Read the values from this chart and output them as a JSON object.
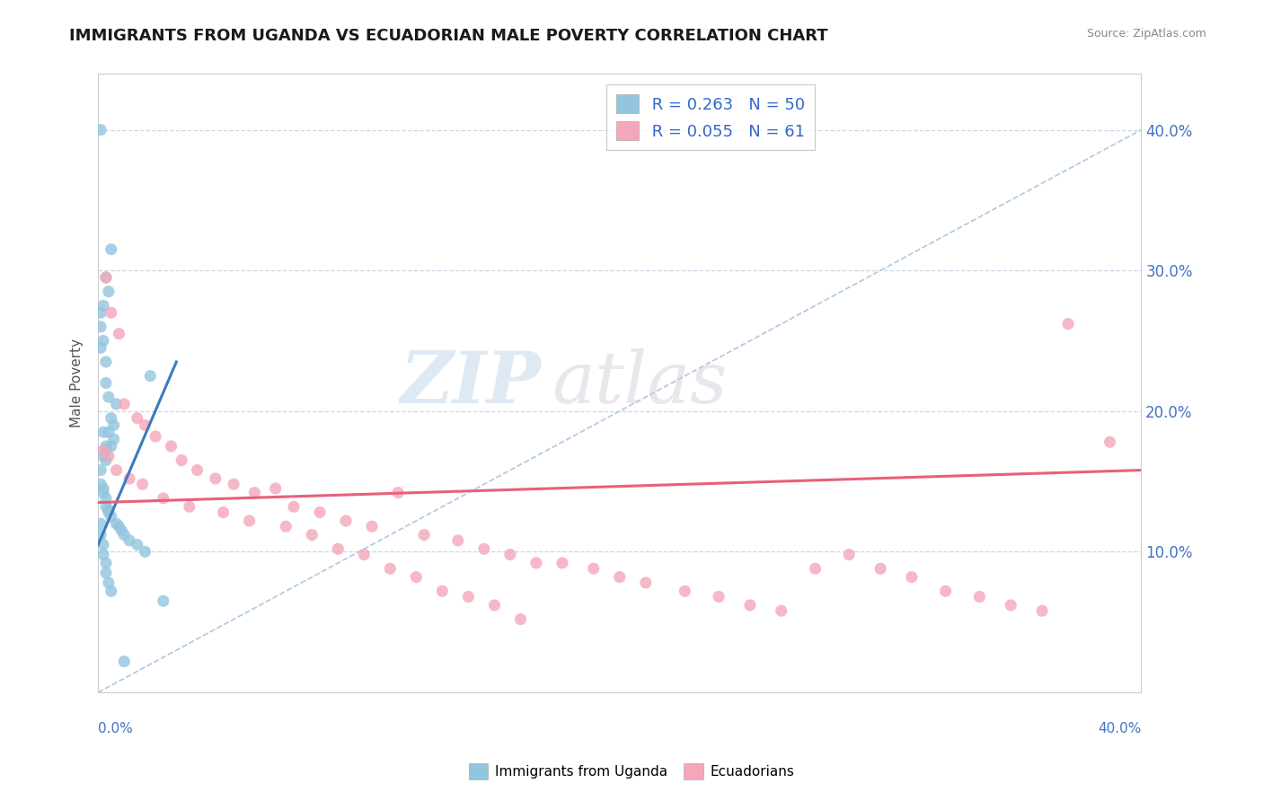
{
  "title": "IMMIGRANTS FROM UGANDA VS ECUADORIAN MALE POVERTY CORRELATION CHART",
  "source": "Source: ZipAtlas.com",
  "ylabel": "Male Poverty",
  "yaxis_ticks": [
    0.0,
    0.1,
    0.2,
    0.3,
    0.4
  ],
  "xaxis_range": [
    0.0,
    0.4
  ],
  "yaxis_range": [
    0.0,
    0.44
  ],
  "legend_blue_r": "0.263",
  "legend_blue_n": "50",
  "legend_pink_r": "0.055",
  "legend_pink_n": "61",
  "legend_blue_label": "Immigrants from Uganda",
  "legend_pink_label": "Ecuadorians",
  "watermark_zip": "ZIP",
  "watermark_atlas": "atlas",
  "blue_color": "#92c5de",
  "pink_color": "#f4a7b9",
  "blue_line_color": "#3a7bbf",
  "pink_line_color": "#e8607a",
  "blue_dots_x": [
    0.001,
    0.005,
    0.001,
    0.002,
    0.003,
    0.004,
    0.002,
    0.001,
    0.001,
    0.003,
    0.003,
    0.004,
    0.005,
    0.006,
    0.007,
    0.006,
    0.005,
    0.004,
    0.003,
    0.003,
    0.002,
    0.003,
    0.002,
    0.001,
    0.001,
    0.002,
    0.002,
    0.003,
    0.003,
    0.004,
    0.004,
    0.005,
    0.007,
    0.008,
    0.009,
    0.01,
    0.012,
    0.015,
    0.018,
    0.02,
    0.001,
    0.001,
    0.002,
    0.002,
    0.003,
    0.003,
    0.004,
    0.005,
    0.025,
    0.01
  ],
  "blue_dots_y": [
    0.4,
    0.315,
    0.27,
    0.25,
    0.295,
    0.285,
    0.275,
    0.26,
    0.245,
    0.235,
    0.22,
    0.21,
    0.195,
    0.19,
    0.205,
    0.18,
    0.175,
    0.185,
    0.172,
    0.165,
    0.185,
    0.175,
    0.168,
    0.158,
    0.148,
    0.145,
    0.142,
    0.138,
    0.132,
    0.13,
    0.128,
    0.125,
    0.12,
    0.118,
    0.115,
    0.112,
    0.108,
    0.105,
    0.1,
    0.225,
    0.12,
    0.112,
    0.105,
    0.098,
    0.092,
    0.085,
    0.078,
    0.072,
    0.065,
    0.022
  ],
  "pink_dots_x": [
    0.003,
    0.005,
    0.008,
    0.01,
    0.015,
    0.018,
    0.022,
    0.028,
    0.032,
    0.038,
    0.045,
    0.052,
    0.06,
    0.068,
    0.075,
    0.085,
    0.095,
    0.105,
    0.115,
    0.125,
    0.138,
    0.148,
    0.158,
    0.168,
    0.178,
    0.19,
    0.2,
    0.21,
    0.225,
    0.238,
    0.25,
    0.262,
    0.275,
    0.288,
    0.3,
    0.312,
    0.325,
    0.338,
    0.35,
    0.362,
    0.002,
    0.004,
    0.007,
    0.012,
    0.017,
    0.025,
    0.035,
    0.048,
    0.058,
    0.072,
    0.082,
    0.092,
    0.102,
    0.112,
    0.122,
    0.132,
    0.142,
    0.152,
    0.162,
    0.372,
    0.388
  ],
  "pink_dots_y": [
    0.295,
    0.27,
    0.255,
    0.205,
    0.195,
    0.19,
    0.182,
    0.175,
    0.165,
    0.158,
    0.152,
    0.148,
    0.142,
    0.145,
    0.132,
    0.128,
    0.122,
    0.118,
    0.142,
    0.112,
    0.108,
    0.102,
    0.098,
    0.092,
    0.092,
    0.088,
    0.082,
    0.078,
    0.072,
    0.068,
    0.062,
    0.058,
    0.088,
    0.098,
    0.088,
    0.082,
    0.072,
    0.068,
    0.062,
    0.058,
    0.172,
    0.168,
    0.158,
    0.152,
    0.148,
    0.138,
    0.132,
    0.128,
    0.122,
    0.118,
    0.112,
    0.102,
    0.098,
    0.088,
    0.082,
    0.072,
    0.068,
    0.062,
    0.052,
    0.262,
    0.178
  ],
  "blue_trend_x": [
    0.0,
    0.03
  ],
  "blue_trend_y": [
    0.105,
    0.235
  ],
  "pink_trend_x": [
    0.0,
    0.4
  ],
  "pink_trend_y": [
    0.135,
    0.158
  ]
}
